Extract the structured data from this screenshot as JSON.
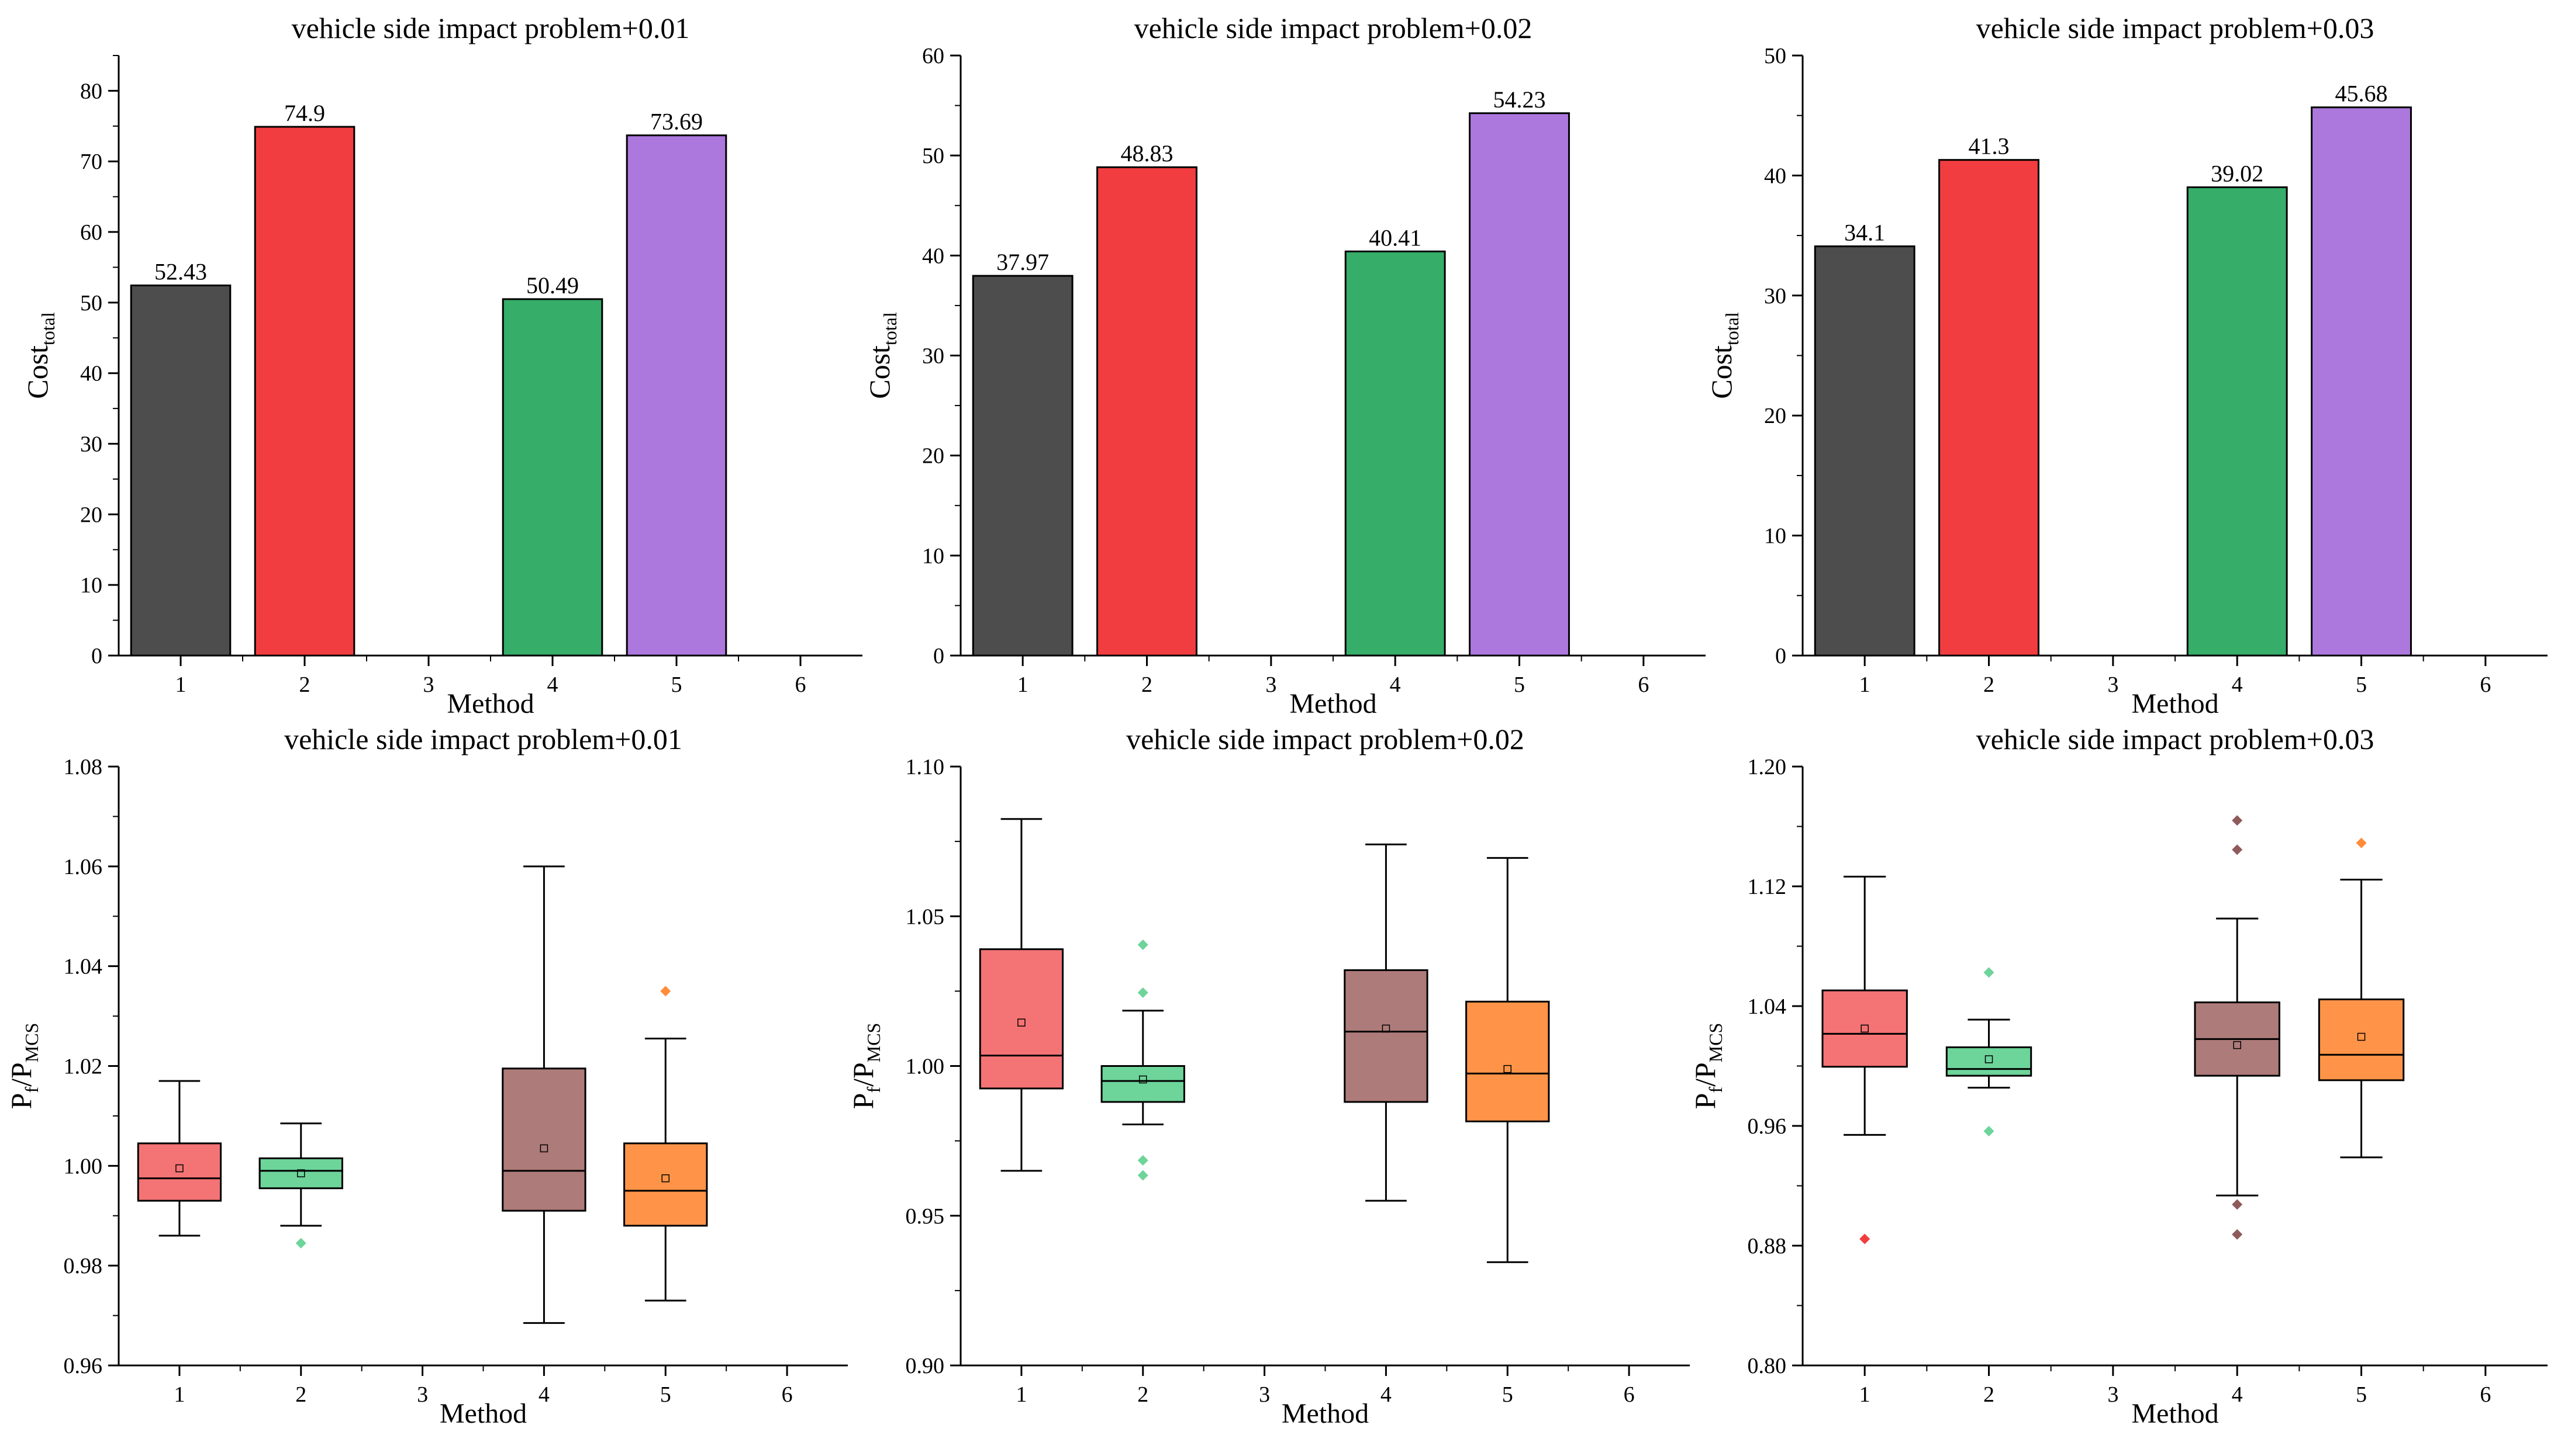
{
  "chart_data": [
    {
      "type": "bar",
      "title": "vehicle side impact problem+0.01",
      "xlabel": "Method",
      "ylabel_main": "Cost",
      "ylabel_sub": "total",
      "ylim": [
        0,
        85
      ],
      "yticks": [
        0,
        10,
        20,
        30,
        40,
        50,
        60,
        70,
        80
      ],
      "ytick_labels": [
        "0",
        "10",
        "20",
        "30",
        "40",
        "50",
        "60",
        "70",
        "80"
      ],
      "xticks": [
        1,
        2,
        3,
        4,
        5,
        6
      ],
      "xtick_labels": [
        "1",
        "2",
        "3",
        "4",
        "5",
        "6"
      ],
      "bars": [
        {
          "x": 1,
          "value": 52.43,
          "label": "52.43",
          "color": "#4d4d4d"
        },
        {
          "x": 2,
          "value": 74.9,
          "label": "74.9",
          "color": "#f23d40"
        },
        {
          "x": 4,
          "value": 50.49,
          "label": "50.49",
          "color": "#36ad69"
        },
        {
          "x": 5,
          "value": 73.69,
          "label": "73.69",
          "color": "#ad78de"
        }
      ]
    },
    {
      "type": "bar",
      "title": "vehicle side impact problem+0.02",
      "xlabel": "Method",
      "ylabel_main": "Cost",
      "ylabel_sub": "total",
      "ylim": [
        0,
        60
      ],
      "yticks": [
        0,
        10,
        20,
        30,
        40,
        50,
        60
      ],
      "ytick_labels": [
        "0",
        "10",
        "20",
        "30",
        "40",
        "50",
        "60"
      ],
      "xticks": [
        1,
        2,
        3,
        4,
        5,
        6
      ],
      "xtick_labels": [
        "1",
        "2",
        "3",
        "4",
        "5",
        "6"
      ],
      "bars": [
        {
          "x": 1,
          "value": 37.97,
          "label": "37.97",
          "color": "#4d4d4d"
        },
        {
          "x": 2,
          "value": 48.83,
          "label": "48.83",
          "color": "#f23d40"
        },
        {
          "x": 4,
          "value": 40.41,
          "label": "40.41",
          "color": "#36ad69"
        },
        {
          "x": 5,
          "value": 54.23,
          "label": "54.23",
          "color": "#ad78de"
        }
      ]
    },
    {
      "type": "bar",
      "title": "vehicle side impact problem+0.03",
      "xlabel": "Method",
      "ylabel_main": "Cost",
      "ylabel_sub": "total",
      "ylim": [
        0,
        50
      ],
      "yticks": [
        0,
        10,
        20,
        30,
        40,
        50
      ],
      "ytick_labels": [
        "0",
        "10",
        "20",
        "30",
        "40",
        "50"
      ],
      "xticks": [
        1,
        2,
        3,
        4,
        5,
        6
      ],
      "xtick_labels": [
        "1",
        "2",
        "3",
        "4",
        "5",
        "6"
      ],
      "bars": [
        {
          "x": 1,
          "value": 34.1,
          "label": "34.1",
          "color": "#4d4d4d"
        },
        {
          "x": 2,
          "value": 41.3,
          "label": "41.3",
          "color": "#f23d40"
        },
        {
          "x": 4,
          "value": 39.02,
          "label": "39.02",
          "color": "#36ad69"
        },
        {
          "x": 5,
          "value": 45.68,
          "label": "45.68",
          "color": "#ad78de"
        }
      ]
    },
    {
      "type": "box",
      "title": "vehicle side impact problem+0.01",
      "xlabel": "Method",
      "ylabel_p": "P",
      "ylabel_f": "f",
      "ylabel_slash": "/P",
      "ylabel_mcs": "MCS",
      "ylim": [
        0.96,
        1.08
      ],
      "yticks": [
        0.96,
        0.98,
        1.0,
        1.02,
        1.04,
        1.06,
        1.08
      ],
      "ytick_labels": [
        "0.96",
        "0.98",
        "1.00",
        "1.02",
        "1.04",
        "1.06",
        "1.08"
      ],
      "xticks": [
        1,
        2,
        3,
        4,
        5,
        6
      ],
      "xtick_labels": [
        "1",
        "2",
        "3",
        "4",
        "5",
        "6"
      ],
      "boxes": [
        {
          "x": 1,
          "whislo": 0.986,
          "q1": 0.993,
          "med": 0.9975,
          "q3": 1.0045,
          "whishi": 1.017,
          "mean": 0.9995,
          "fliers": [],
          "fill": "#f47374",
          "flier_color": "#f23d40"
        },
        {
          "x": 2,
          "whislo": 0.988,
          "q1": 0.9955,
          "med": 0.999,
          "q3": 1.0015,
          "whishi": 1.0085,
          "mean": 0.9985,
          "fliers": [
            0.9845
          ],
          "fill": "#6dd49a",
          "flier_color": "#6dd49a"
        },
        {
          "x": 4,
          "whislo": 0.9685,
          "q1": 0.991,
          "med": 0.999,
          "q3": 1.0195,
          "whishi": 1.06,
          "mean": 1.0035,
          "fliers": [],
          "fill": "#ad7b79",
          "flier_color": "#8f5a5a"
        },
        {
          "x": 5,
          "whislo": 0.973,
          "q1": 0.988,
          "med": 0.995,
          "q3": 1.0045,
          "whishi": 1.0255,
          "mean": 0.9975,
          "fliers": [
            1.035
          ],
          "fill": "#ff9448",
          "flier_color": "#ff8c3a"
        }
      ]
    },
    {
      "type": "box",
      "title": "vehicle side impact problem+0.02",
      "xlabel": "Method",
      "ylabel_p": "P",
      "ylabel_f": "f",
      "ylabel_slash": "/P",
      "ylabel_mcs": "MCS",
      "ylim": [
        0.9,
        1.1
      ],
      "yticks": [
        0.9,
        0.95,
        1.0,
        1.05,
        1.1
      ],
      "ytick_labels": [
        "0.90",
        "0.95",
        "1.00",
        "1.05",
        "1.10"
      ],
      "xticks": [
        1,
        2,
        3,
        4,
        5,
        6
      ],
      "xtick_labels": [
        "1",
        "2",
        "3",
        "4",
        "5",
        "6"
      ],
      "boxes": [
        {
          "x": 1,
          "whislo": 0.965,
          "q1": 0.9925,
          "med": 1.0035,
          "q3": 1.039,
          "whishi": 1.0825,
          "mean": 1.0145,
          "fliers": [],
          "fill": "#f47374",
          "flier_color": "#f23d40"
        },
        {
          "x": 2,
          "whislo": 0.9805,
          "q1": 0.988,
          "med": 0.995,
          "q3": 1.0,
          "whishi": 1.0185,
          "mean": 0.9955,
          "fliers": [
            1.0405,
            1.0245,
            0.9685,
            0.9635
          ],
          "fill": "#6dd49a",
          "flier_color": "#6dd49a"
        },
        {
          "x": 4,
          "whislo": 0.955,
          "q1": 0.988,
          "med": 1.0115,
          "q3": 1.032,
          "whishi": 1.074,
          "mean": 1.0125,
          "fliers": [],
          "fill": "#ad7b79",
          "flier_color": "#8f5a5a"
        },
        {
          "x": 5,
          "whislo": 0.9345,
          "q1": 0.9815,
          "med": 0.9975,
          "q3": 1.0215,
          "whishi": 1.0695,
          "mean": 0.999,
          "fliers": [],
          "fill": "#ff9448",
          "flier_color": "#ff8c3a"
        }
      ]
    },
    {
      "type": "box",
      "title": "vehicle side impact problem+0.03",
      "xlabel": "Method",
      "ylabel_p": "P",
      "ylabel_f": "f",
      "ylabel_slash": "/P",
      "ylabel_mcs": "MCS",
      "ylim": [
        0.8,
        1.2
      ],
      "yticks": [
        0.8,
        0.88,
        0.96,
        1.04,
        1.12,
        1.2
      ],
      "ytick_labels": [
        "0.80",
        "0.88",
        "0.96",
        "1.04",
        "1.12",
        "1.20"
      ],
      "xticks": [
        1,
        2,
        3,
        4,
        5,
        6
      ],
      "xtick_labels": [
        "1",
        "2",
        "3",
        "4",
        "5",
        "6"
      ],
      "boxes": [
        {
          "x": 1,
          "whislo": 0.954,
          "q1": 0.9995,
          "med": 1.0215,
          "q3": 1.0505,
          "whishi": 1.1265,
          "mean": 1.025,
          "fliers": [
            0.8845
          ],
          "fill": "#f47374",
          "flier_color": "#f23d40"
        },
        {
          "x": 2,
          "whislo": 0.9855,
          "q1": 0.9935,
          "med": 0.998,
          "q3": 1.0125,
          "whishi": 1.031,
          "mean": 1.0045,
          "fliers": [
            1.0625,
            0.9565
          ],
          "fill": "#6dd49a",
          "flier_color": "#6dd49a"
        },
        {
          "x": 4,
          "whislo": 0.9135,
          "q1": 0.9935,
          "med": 1.018,
          "q3": 1.0425,
          "whishi": 1.0985,
          "mean": 1.014,
          "fliers": [
            1.164,
            1.1445,
            0.9075,
            0.8875
          ],
          "fill": "#ad7b79",
          "flier_color": "#8f5a5a"
        },
        {
          "x": 5,
          "whislo": 0.939,
          "q1": 0.9905,
          "med": 1.0075,
          "q3": 1.0445,
          "whishi": 1.1245,
          "mean": 1.0195,
          "fliers": [
            1.149
          ],
          "fill": "#ff9448",
          "flier_color": "#ff8c3a"
        }
      ]
    }
  ]
}
